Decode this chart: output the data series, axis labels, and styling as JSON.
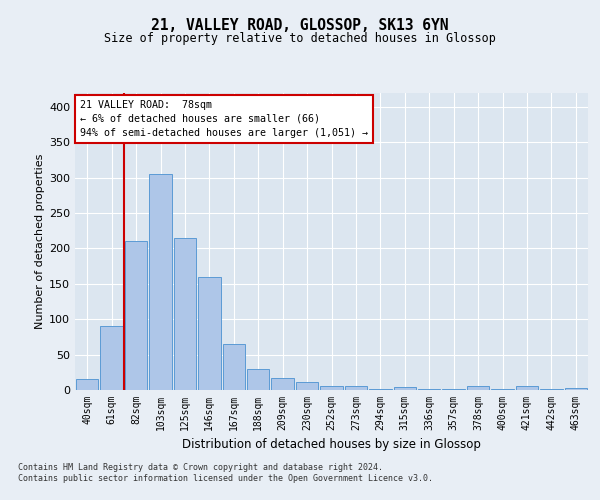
{
  "title1": "21, VALLEY ROAD, GLOSSOP, SK13 6YN",
  "title2": "Size of property relative to detached houses in Glossop",
  "xlabel": "Distribution of detached houses by size in Glossop",
  "ylabel": "Number of detached properties",
  "categories": [
    "40sqm",
    "61sqm",
    "82sqm",
    "103sqm",
    "125sqm",
    "146sqm",
    "167sqm",
    "188sqm",
    "209sqm",
    "230sqm",
    "252sqm",
    "273sqm",
    "294sqm",
    "315sqm",
    "336sqm",
    "357sqm",
    "378sqm",
    "400sqm",
    "421sqm",
    "442sqm",
    "463sqm"
  ],
  "values": [
    15,
    90,
    210,
    305,
    215,
    160,
    65,
    30,
    17,
    11,
    6,
    5,
    1,
    4,
    1,
    1,
    5,
    1,
    5,
    1,
    3
  ],
  "bar_color": "#aec6e8",
  "bar_edge_color": "#5b9bd5",
  "vline_color": "#cc0000",
  "annotation_title": "21 VALLEY ROAD:  78sqm",
  "annotation_line1": "← 6% of detached houses are smaller (66)",
  "annotation_line2": "94% of semi-detached houses are larger (1,051) →",
  "annotation_box_facecolor": "#ffffff",
  "annotation_border_color": "#cc0000",
  "ylim": [
    0,
    420
  ],
  "yticks": [
    0,
    50,
    100,
    150,
    200,
    250,
    300,
    350,
    400
  ],
  "background_color": "#e8eef5",
  "plot_bg_color": "#dce6f0",
  "footer1": "Contains HM Land Registry data © Crown copyright and database right 2024.",
  "footer2": "Contains public sector information licensed under the Open Government Licence v3.0."
}
